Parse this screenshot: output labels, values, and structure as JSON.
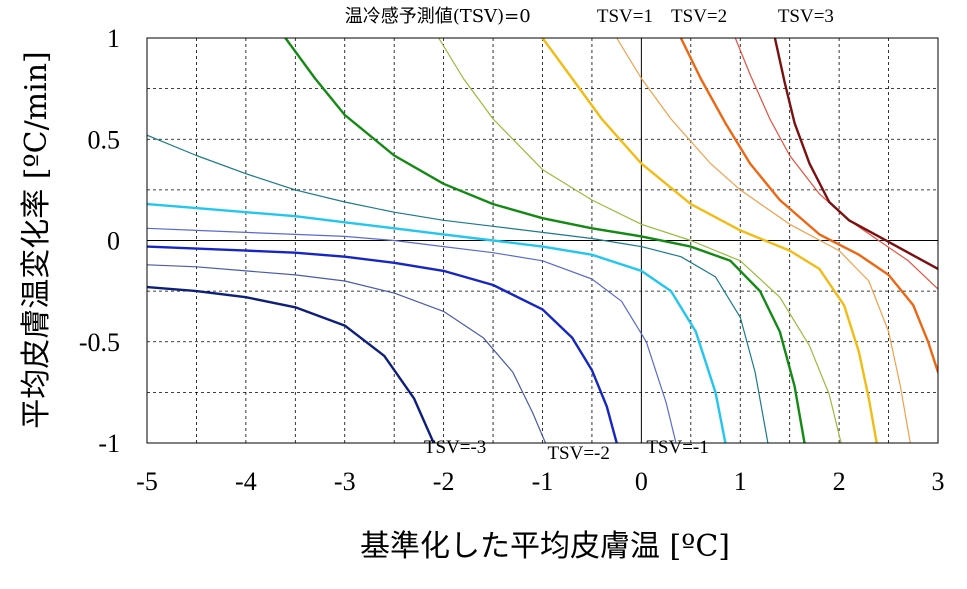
{
  "chart_data": {
    "type": "line",
    "title": "",
    "xlabel": "基準化した平均皮膚温 [ºC]",
    "ylabel": "平均皮膚温変化率 [ºC/min]",
    "xlim": [
      -5,
      3
    ],
    "ylim": [
      -1,
      1
    ],
    "x_ticks": [
      "-5",
      "-4",
      "-3",
      "-2",
      "-1",
      "0",
      "1",
      "2",
      "3"
    ],
    "y_ticks": [
      "1",
      "0.5",
      "0",
      "-0.5",
      "-1"
    ],
    "grid": "dashed, 0.5 step on x, 0.25 step on y",
    "annotations": [
      {
        "text": "温冷感予測値(TSV)=0",
        "x": -3.0,
        "y": 1.08
      },
      {
        "text": "TSV=1",
        "x": -0.45,
        "y": 1.08
      },
      {
        "text": "TSV=2",
        "x": 0.3,
        "y": 1.08
      },
      {
        "text": "TSV=3",
        "x": 1.38,
        "y": 1.08
      },
      {
        "text": "TSV=-3",
        "x": -2.2,
        "y": -1.05
      },
      {
        "text": "TSV=-2",
        "x": -0.95,
        "y": -1.08
      },
      {
        "text": "TSV=-1",
        "x": 0.05,
        "y": -1.05
      }
    ],
    "series": [
      {
        "color": "#0d1f7a",
        "width": 2.4,
        "x": [
          -5,
          -4.5,
          -4,
          -3.5,
          -3,
          -2.6,
          -2.3,
          -2.1
        ],
        "y": [
          -0.23,
          -0.25,
          -0.28,
          -0.33,
          -0.42,
          -0.57,
          -0.78,
          -1.0
        ]
      },
      {
        "color": "#4a5aa8",
        "width": 1.2,
        "x": [
          -5,
          -4.5,
          -4,
          -3.5,
          -3,
          -2.5,
          -2,
          -1.6,
          -1.3,
          -1.1,
          -0.97
        ],
        "y": [
          -0.12,
          -0.13,
          -0.15,
          -0.17,
          -0.2,
          -0.26,
          -0.35,
          -0.48,
          -0.65,
          -0.85,
          -1.0
        ]
      },
      {
        "color": "#1626c4",
        "width": 2.4,
        "x": [
          -5,
          -4.5,
          -4,
          -3.5,
          -3,
          -2.5,
          -2,
          -1.5,
          -1,
          -0.7,
          -0.5,
          -0.35,
          -0.25
        ],
        "y": [
          -0.03,
          -0.04,
          -0.05,
          -0.06,
          -0.08,
          -0.11,
          -0.15,
          -0.22,
          -0.34,
          -0.48,
          -0.64,
          -0.82,
          -1.0
        ]
      },
      {
        "color": "#5a6ad0",
        "width": 1.2,
        "x": [
          -5,
          -4.5,
          -4,
          -3.5,
          -3,
          -2.5,
          -2,
          -1.5,
          -1,
          -0.5,
          -0.2,
          0.05,
          0.25,
          0.35
        ],
        "y": [
          0.06,
          0.05,
          0.04,
          0.03,
          0.02,
          0.0,
          -0.03,
          -0.06,
          -0.1,
          -0.19,
          -0.3,
          -0.5,
          -0.8,
          -1.0
        ]
      },
      {
        "color": "#22c6ee",
        "width": 2.4,
        "x": [
          -5,
          -4.5,
          -4,
          -3.5,
          -3,
          -2.5,
          -2,
          -1.5,
          -1,
          -0.5,
          0,
          0.3,
          0.55,
          0.75,
          0.85
        ],
        "y": [
          0.18,
          0.16,
          0.14,
          0.12,
          0.09,
          0.06,
          0.03,
          0.0,
          -0.03,
          -0.07,
          -0.15,
          -0.25,
          -0.45,
          -0.75,
          -1.0
        ]
      },
      {
        "color": "#1a7a8a",
        "width": 1.2,
        "x": [
          -5,
          -4.5,
          -4,
          -3.5,
          -3,
          -2.5,
          -2,
          -1.5,
          -1,
          -0.5,
          0,
          0.4,
          0.75,
          1.0,
          1.15,
          1.28
        ],
        "y": [
          0.52,
          0.42,
          0.33,
          0.25,
          0.19,
          0.14,
          0.1,
          0.07,
          0.04,
          0.01,
          -0.03,
          -0.08,
          -0.18,
          -0.38,
          -0.65,
          -1.0
        ]
      },
      {
        "color": "#138a13",
        "width": 2.4,
        "x": [
          -3.6,
          -3.3,
          -3,
          -2.5,
          -2,
          -1.5,
          -1,
          -0.5,
          0,
          0.5,
          0.9,
          1.2,
          1.4,
          1.55,
          1.65
        ],
        "y": [
          1.0,
          0.8,
          0.62,
          0.42,
          0.28,
          0.18,
          0.11,
          0.06,
          0.02,
          -0.03,
          -0.1,
          -0.25,
          -0.45,
          -0.72,
          -1.0
        ]
      },
      {
        "color": "#98bb3a",
        "width": 1.2,
        "x": [
          -2.05,
          -1.8,
          -1.5,
          -1.0,
          -0.5,
          0,
          0.5,
          1.0,
          1.4,
          1.7,
          1.9,
          2.02
        ],
        "y": [
          1.0,
          0.8,
          0.6,
          0.35,
          0.2,
          0.08,
          0.0,
          -0.1,
          -0.28,
          -0.52,
          -0.76,
          -1.0
        ]
      },
      {
        "color": "#f2bc14",
        "width": 2.4,
        "x": [
          -1.0,
          -0.7,
          -0.4,
          0,
          0.5,
          1.0,
          1.5,
          1.8,
          2.05,
          2.2,
          2.3,
          2.38
        ],
        "y": [
          1.0,
          0.8,
          0.6,
          0.38,
          0.18,
          0.05,
          -0.05,
          -0.14,
          -0.32,
          -0.55,
          -0.78,
          -1.0
        ]
      },
      {
        "color": "#f2a04a",
        "width": 1.2,
        "x": [
          -0.25,
          0,
          0.3,
          0.7,
          1.0,
          1.5,
          2.0,
          2.3,
          2.5,
          2.62,
          2.72
        ],
        "y": [
          1.0,
          0.8,
          0.6,
          0.38,
          0.25,
          0.08,
          -0.05,
          -0.2,
          -0.45,
          -0.72,
          -1.0
        ]
      },
      {
        "color": "#ee6612",
        "width": 2.4,
        "x": [
          0.4,
          0.6,
          0.85,
          1.1,
          1.4,
          1.8,
          2.2,
          2.5,
          2.75,
          2.9,
          3.0
        ],
        "y": [
          1.0,
          0.8,
          0.58,
          0.38,
          0.2,
          0.03,
          -0.07,
          -0.17,
          -0.32,
          -0.5,
          -0.65
        ]
      },
      {
        "color": "#e85040",
        "width": 1.2,
        "x": [
          0.95,
          1.1,
          1.3,
          1.5,
          1.8,
          2.1,
          2.4,
          2.7,
          3.0
        ],
        "y": [
          1.0,
          0.82,
          0.6,
          0.42,
          0.23,
          0.1,
          0.0,
          -0.1,
          -0.24
        ]
      },
      {
        "color": "#7a1010",
        "width": 2.4,
        "x": [
          1.35,
          1.45,
          1.55,
          1.7,
          1.9,
          2.1,
          2.4,
          2.7,
          3.0
        ],
        "y": [
          1.0,
          0.78,
          0.58,
          0.38,
          0.19,
          0.1,
          0.02,
          -0.06,
          -0.14
        ]
      }
    ]
  }
}
